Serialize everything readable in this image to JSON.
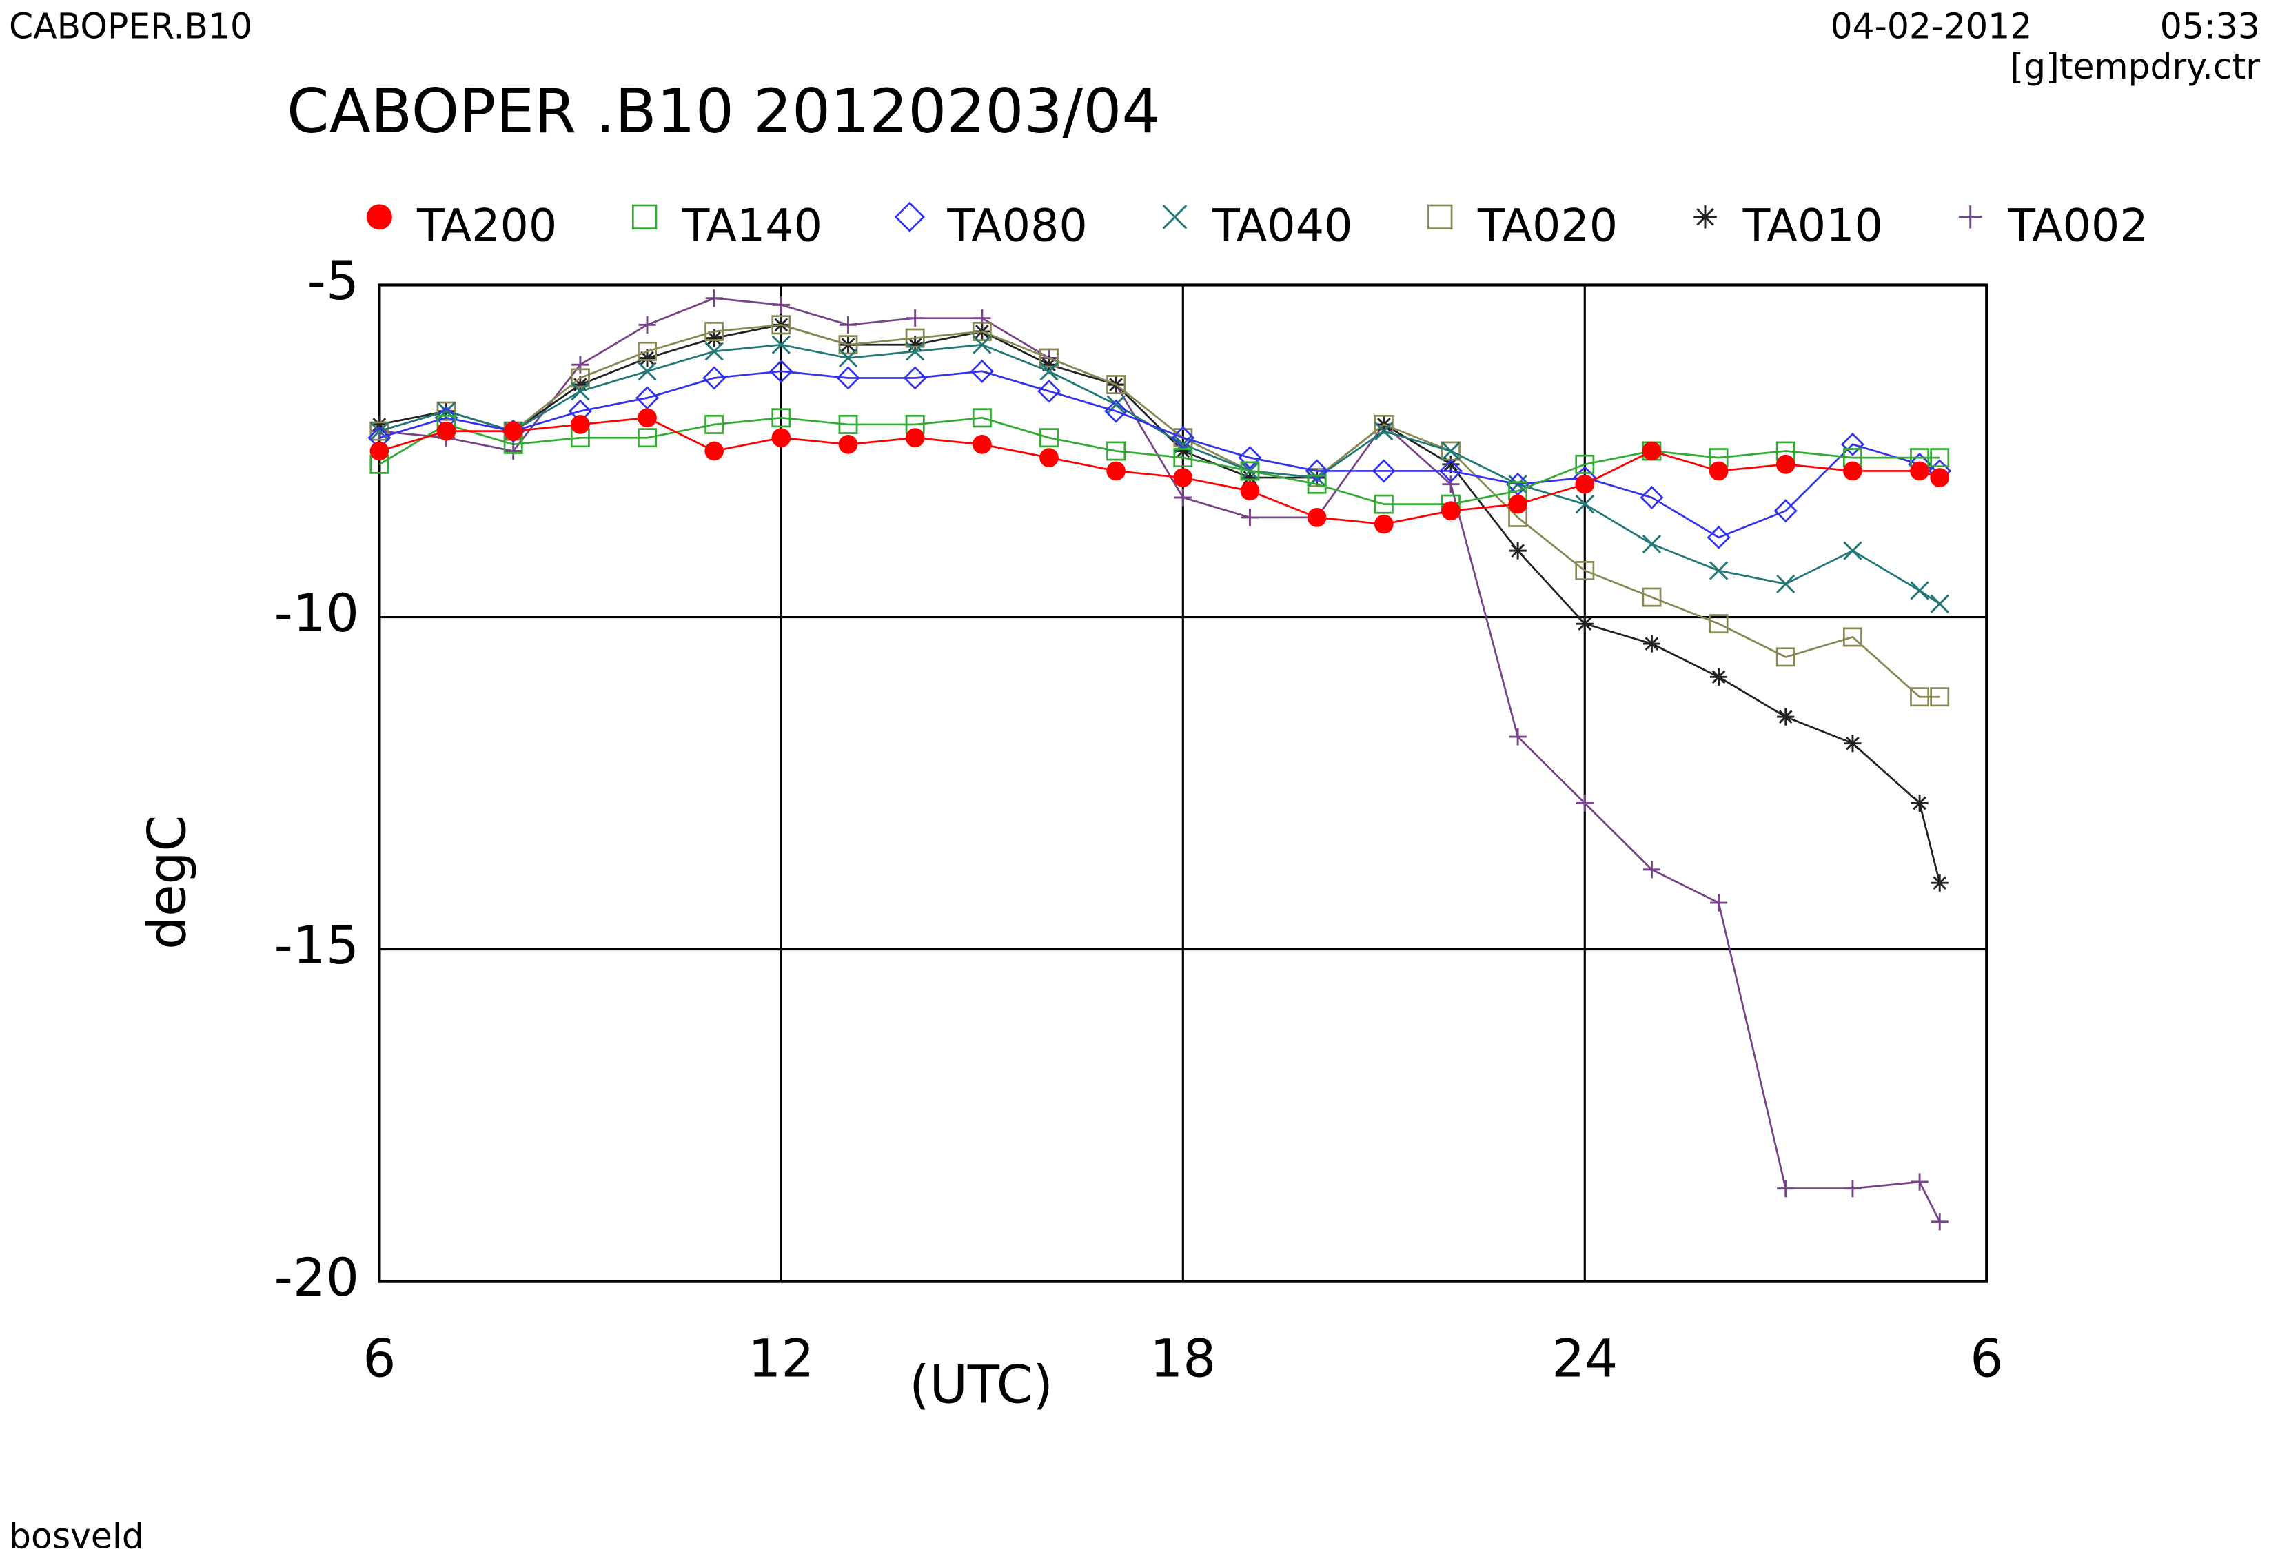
{
  "header": {
    "left": "CABOPER.B10",
    "date": "04-02-2012",
    "time": "05:33",
    "file": "[g]tempdry.ctr"
  },
  "footer": "bosveld",
  "chart_data": {
    "type": "line",
    "title": "CABOPER .B10 20120203/04",
    "ylabel": "degC",
    "xlabel": "(UTC)",
    "x": [
      6,
      7,
      8,
      9,
      10,
      11,
      12,
      13,
      14,
      15,
      16,
      17,
      18,
      19,
      20,
      21,
      22,
      23,
      24,
      25,
      26,
      27,
      28,
      29,
      29.3
    ],
    "xlim": [
      6,
      30
    ],
    "xticks": [
      6,
      12,
      18,
      24,
      {
        "value": 30,
        "label": "6"
      }
    ],
    "ylim": [
      -20,
      -5
    ],
    "yticks": [
      -20,
      -15,
      -10,
      -5
    ],
    "grid": true,
    "legend": "top",
    "series": [
      {
        "name": "TA200",
        "color": "#ff0000",
        "marker": "filled-circle",
        "values": [
          -7.5,
          -7.2,
          -7.2,
          -7.1,
          -7.0,
          -7.5,
          -7.3,
          -7.4,
          -7.3,
          -7.4,
          -7.6,
          -7.8,
          -7.9,
          -8.1,
          -8.5,
          -8.6,
          -8.4,
          -8.3,
          -8.0,
          -7.5,
          -7.8,
          -7.7,
          -7.8,
          -7.8,
          -7.9
        ]
      },
      {
        "name": "TA140",
        "color": "#33aa33",
        "marker": "square",
        "values": [
          -7.7,
          -7.1,
          -7.4,
          -7.3,
          -7.3,
          -7.1,
          -7.0,
          -7.1,
          -7.1,
          -7.0,
          -7.3,
          -7.5,
          -7.6,
          -7.8,
          -8.0,
          -8.3,
          -8.3,
          -8.1,
          -7.7,
          -7.5,
          -7.6,
          -7.5,
          -7.6,
          -7.6,
          -7.6
        ]
      },
      {
        "name": "TA080",
        "color": "#3333ee",
        "marker": "diamond",
        "values": [
          -7.3,
          -7.0,
          -7.2,
          -6.9,
          -6.7,
          -6.4,
          -6.3,
          -6.4,
          -6.4,
          -6.3,
          -6.6,
          -6.9,
          -7.3,
          -7.6,
          -7.8,
          -7.8,
          -7.8,
          -8.0,
          -7.9,
          -8.2,
          -8.8,
          -8.4,
          -7.4,
          -7.7,
          -7.8
        ]
      },
      {
        "name": "TA040",
        "color": "#227777",
        "marker": "cross",
        "values": [
          -7.2,
          -6.9,
          -7.2,
          -6.6,
          -6.3,
          -6.0,
          -5.9,
          -6.1,
          -6.0,
          -5.9,
          -6.3,
          -6.8,
          -7.4,
          -7.8,
          -7.9,
          -7.2,
          -7.5,
          -8.0,
          -8.3,
          -8.9,
          -9.3,
          -9.5,
          -9.0,
          -9.6,
          -9.8
        ]
      },
      {
        "name": "TA020",
        "color": "#888855",
        "marker": "square",
        "values": [
          -7.2,
          -6.9,
          -7.2,
          -6.4,
          -6.0,
          -5.7,
          -5.6,
          -5.9,
          -5.8,
          -5.7,
          -6.1,
          -6.5,
          -7.3,
          -7.8,
          -7.9,
          -7.1,
          -7.5,
          -8.5,
          -9.3,
          -9.7,
          -10.1,
          -10.6,
          -10.3,
          -11.2,
          -11.2
        ]
      },
      {
        "name": "TA010",
        "color": "#222222",
        "marker": "asterisk",
        "values": [
          -7.1,
          -6.9,
          -7.2,
          -6.5,
          -6.1,
          -5.8,
          -5.6,
          -5.9,
          -5.9,
          -5.7,
          -6.2,
          -6.5,
          -7.5,
          -7.9,
          -7.9,
          -7.1,
          -7.7,
          -9.0,
          -10.1,
          -10.4,
          -10.9,
          -11.5,
          -11.9,
          -12.8,
          -14.0
        ]
      },
      {
        "name": "TA002",
        "color": "#774488",
        "marker": "plus",
        "values": [
          -7.2,
          -7.3,
          -7.5,
          -6.2,
          -5.6,
          -5.2,
          -5.3,
          -5.6,
          -5.5,
          -5.5,
          -6.1,
          -6.5,
          -8.2,
          -8.5,
          -8.5,
          -7.1,
          -8.0,
          -11.8,
          -12.8,
          -13.8,
          -14.3,
          -18.6,
          -18.6,
          -18.5,
          -19.1
        ]
      }
    ]
  }
}
